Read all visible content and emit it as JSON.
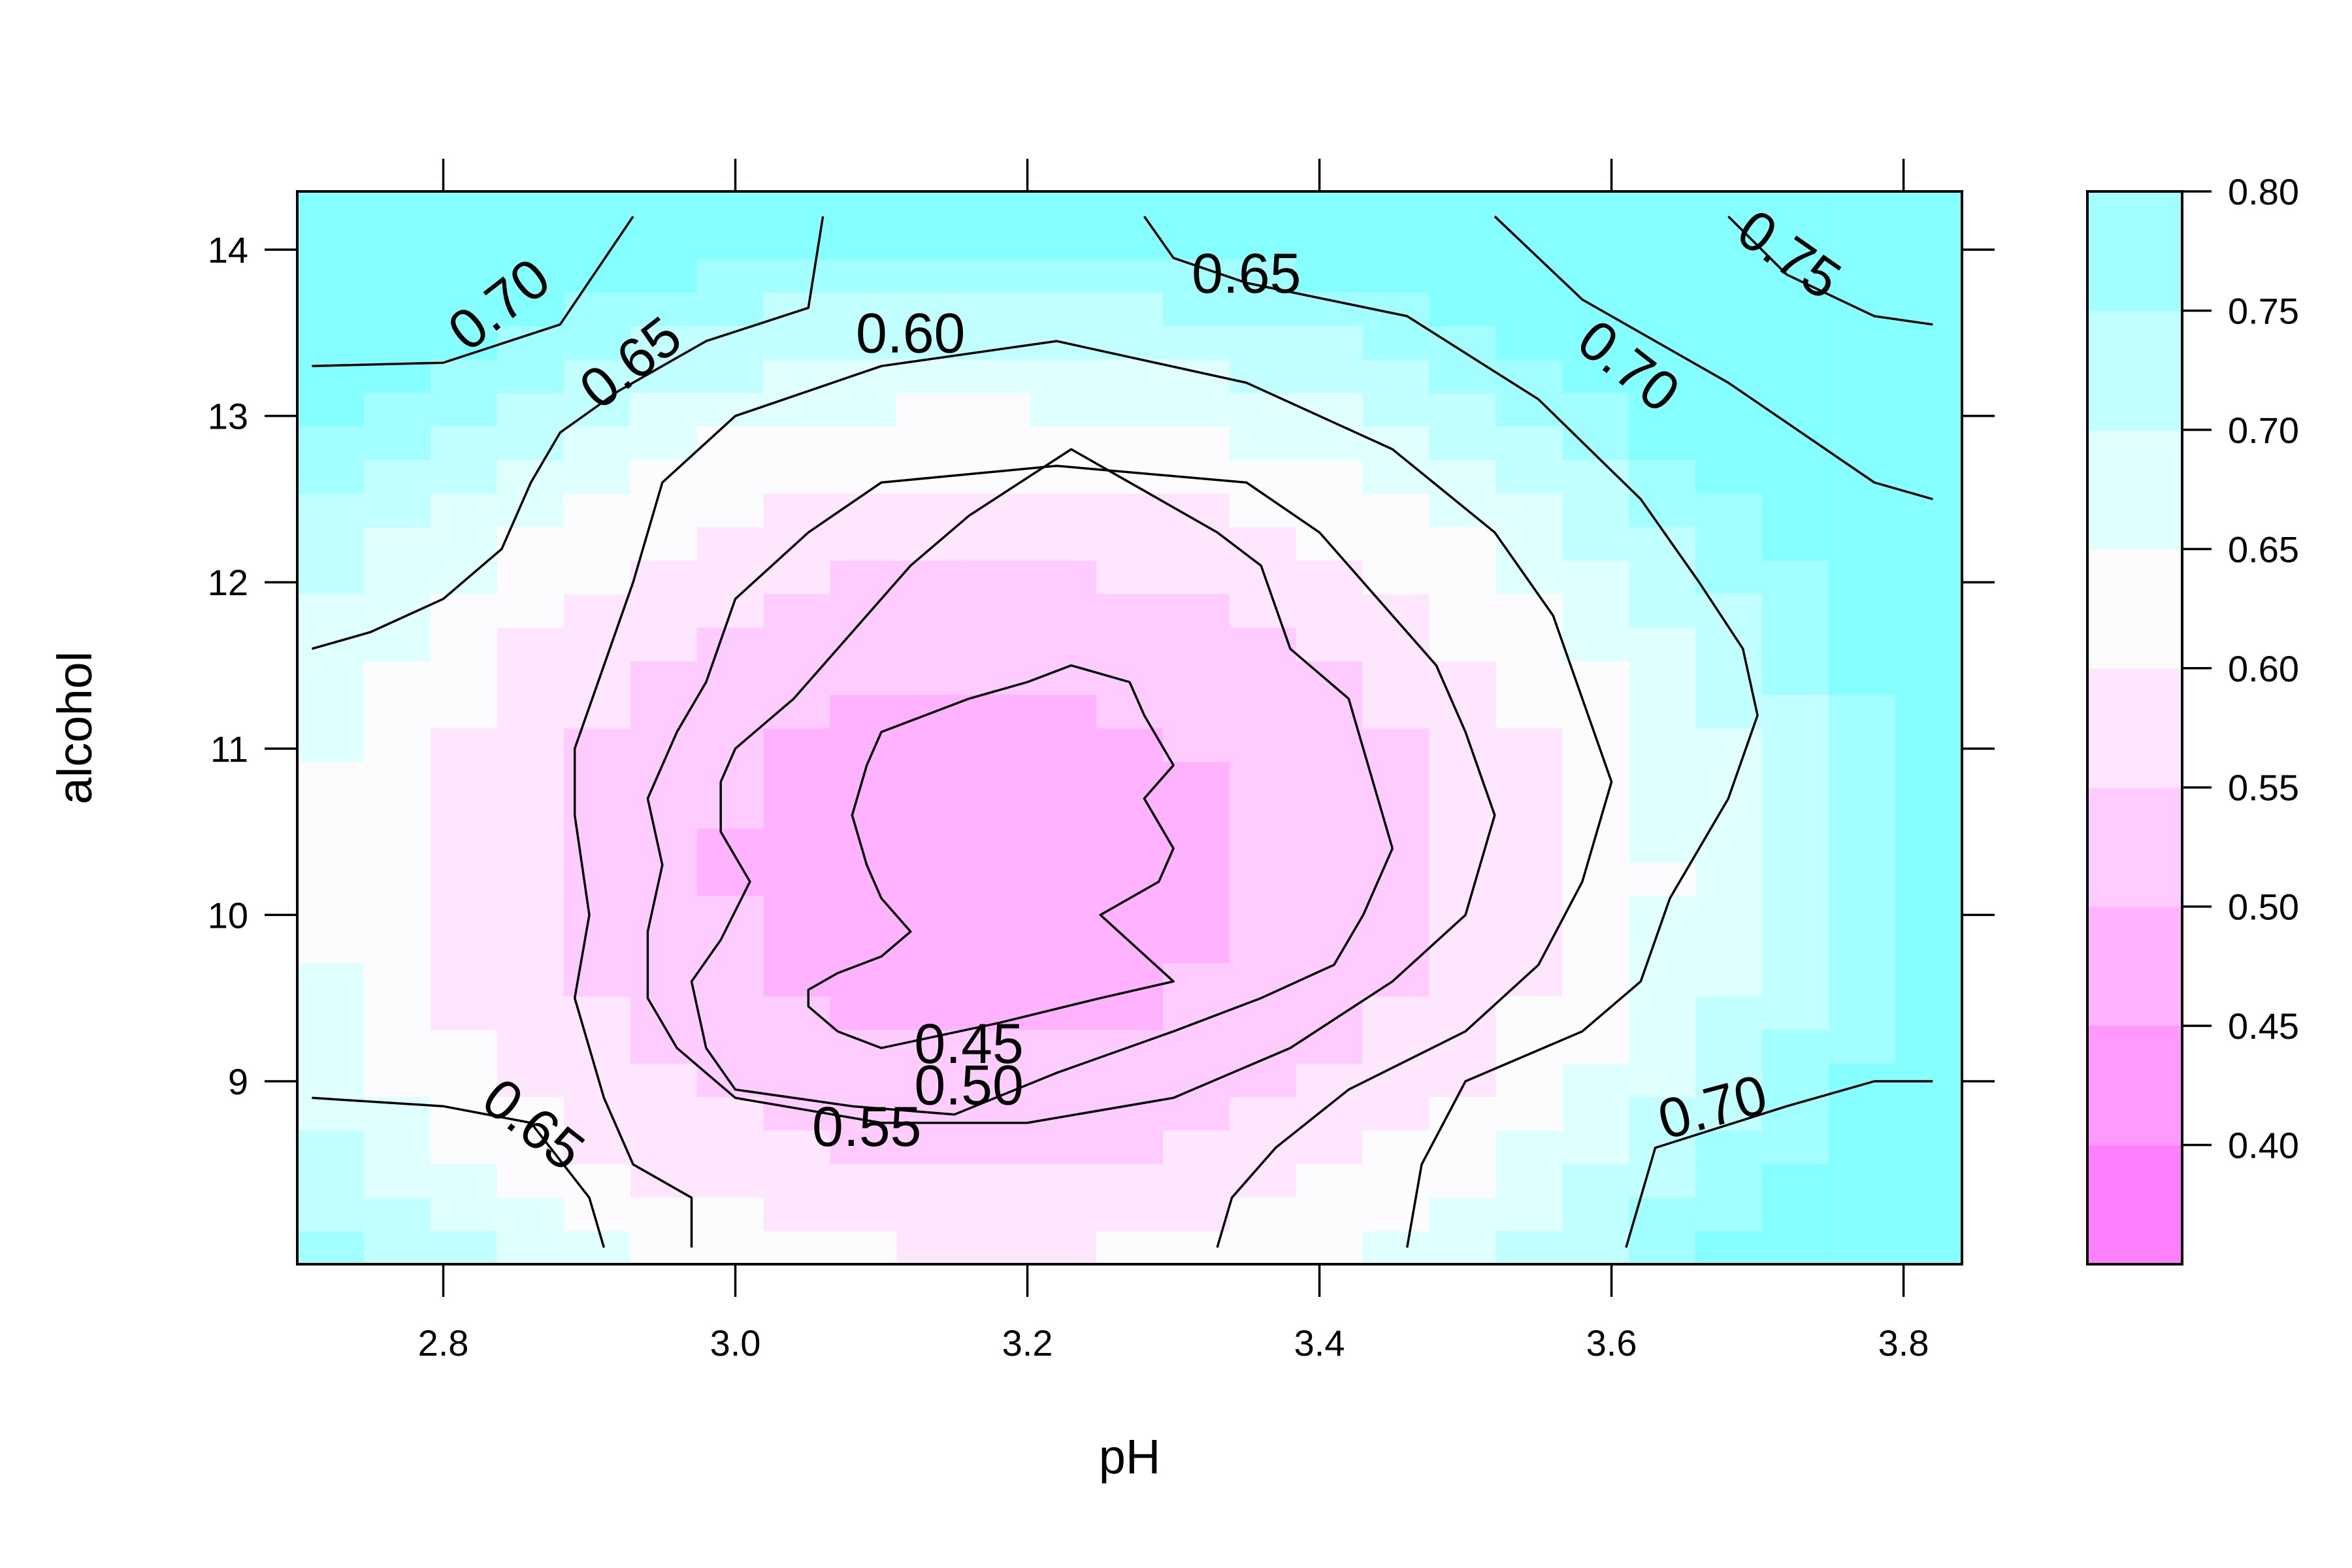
{
  "chart_data": {
    "type": "heatmap",
    "subtype": "levelplot-with-contours",
    "xlabel": "pH",
    "ylabel": "alcohol",
    "xlim": [
      2.7,
      3.84
    ],
    "ylim": [
      7.9,
      14.35
    ],
    "xticks": [
      2.8,
      3.0,
      3.2,
      3.4,
      3.6,
      3.8
    ],
    "xtick_labels": [
      "2.8",
      "3.0",
      "3.2",
      "3.4",
      "3.6",
      "3.8"
    ],
    "yticks": [
      9,
      10,
      11,
      12,
      13,
      14
    ],
    "ytick_labels": [
      "9",
      "10",
      "11",
      "12",
      "13",
      "14"
    ],
    "colorkey": {
      "range": [
        0.35,
        0.8
      ],
      "breaks": [
        0.35,
        0.4,
        0.45,
        0.5,
        0.55,
        0.6,
        0.65,
        0.7,
        0.75,
        0.8
      ],
      "colors": [
        "#ff80ff",
        "#ff99ff",
        "#ffb3ff",
        "#ffccff",
        "#ffe6ff",
        "#fcfcff",
        "#e0ffff",
        "#c2ffff",
        "#a3ffff",
        "#85ffff"
      ],
      "tick_values": [
        0.4,
        0.45,
        0.5,
        0.55,
        0.6,
        0.65,
        0.7,
        0.75,
        0.8
      ],
      "tick_labels": [
        "0.40",
        "0.45",
        "0.50",
        "0.55",
        "0.60",
        "0.65",
        "0.70",
        "0.75",
        "0.80"
      ]
    },
    "surface_model": {
      "description": "fitted response over pH x alcohol grid",
      "min_value": 0.44,
      "min_at": {
        "pH": 3.2,
        "alcohol": 10.4
      },
      "corner_values": {
        "top_left": 0.72,
        "top_right": 0.79,
        "bottom_left": 0.68,
        "bottom_right": 0.75
      }
    },
    "contours": [
      {
        "level": 0.45,
        "label": "0.45",
        "label_at": {
          "pH": 3.16,
          "alcohol": 9.2
        },
        "label_angle": 0
      },
      {
        "level": 0.5,
        "label": "0.50",
        "label_at": {
          "pH": 3.16,
          "alcohol": 8.95
        },
        "label_angle": 0
      },
      {
        "level": 0.55,
        "label": "0.55",
        "label_at": {
          "pH": 3.09,
          "alcohol": 8.7
        },
        "label_angle": 0
      },
      {
        "level": 0.6,
        "label": "0.60",
        "label_at": {
          "pH": 3.12,
          "alcohol": 13.47
        },
        "label_angle": 0
      },
      {
        "level": 0.65,
        "label": "0.65",
        "label_at": {
          "pH": 2.93,
          "alcohol": 13.3
        },
        "label_angle": -38
      },
      {
        "level": 0.65,
        "label": "0.65",
        "label_at": {
          "pH": 2.86,
          "alcohol": 8.72
        },
        "label_angle": 38
      },
      {
        "level": 0.65,
        "label": "0.65",
        "label_at": {
          "pH": 3.35,
          "alcohol": 13.83
        },
        "label_angle": 0
      },
      {
        "level": 0.7,
        "label": "0.70",
        "label_at": {
          "pH": 2.84,
          "alcohol": 13.65
        },
        "label_angle": -38
      },
      {
        "level": 0.7,
        "label": "0.70",
        "label_at": {
          "pH": 3.61,
          "alcohol": 13.28
        },
        "label_angle": 38
      },
      {
        "level": 0.7,
        "label": "0.70",
        "label_at": {
          "pH": 3.67,
          "alcohol": 8.82
        },
        "label_angle": -15
      },
      {
        "level": 0.75,
        "label": "0.75",
        "label_at": {
          "pH": 3.72,
          "alcohol": 13.95
        },
        "label_angle": 35
      }
    ],
    "contour_paths": [
      {
        "level": 0.45,
        "points": [
          [
            3.07,
            9.3
          ],
          [
            3.05,
            9.45
          ],
          [
            3.05,
            9.55
          ],
          [
            3.07,
            9.65
          ],
          [
            3.1,
            9.75
          ],
          [
            3.12,
            9.9
          ],
          [
            3.1,
            10.1
          ],
          [
            3.09,
            10.3
          ],
          [
            3.08,
            10.6
          ],
          [
            3.09,
            10.9
          ],
          [
            3.1,
            11.1
          ],
          [
            3.13,
            11.2
          ],
          [
            3.16,
            11.3
          ],
          [
            3.2,
            11.4
          ],
          [
            3.23,
            11.5
          ],
          [
            3.27,
            11.4
          ],
          [
            3.28,
            11.2
          ],
          [
            3.3,
            10.9
          ],
          [
            3.28,
            10.7
          ],
          [
            3.3,
            10.4
          ],
          [
            3.29,
            10.2
          ],
          [
            3.25,
            10.0
          ],
          [
            3.3,
            9.6
          ],
          [
            3.25,
            9.5
          ],
          [
            3.18,
            9.35
          ],
          [
            3.1,
            9.2
          ],
          [
            3.07,
            9.3
          ]
        ]
      },
      {
        "level": 0.5,
        "points": [
          [
            3.08,
            8.85
          ],
          [
            3.0,
            8.95
          ],
          [
            2.98,
            9.2
          ],
          [
            2.97,
            9.6
          ],
          [
            2.99,
            9.85
          ],
          [
            3.01,
            10.2
          ],
          [
            2.99,
            10.5
          ],
          [
            2.99,
            10.8
          ],
          [
            3.0,
            11.0
          ],
          [
            3.04,
            11.3
          ],
          [
            3.08,
            11.7
          ],
          [
            3.12,
            12.1
          ],
          [
            3.16,
            12.4
          ],
          [
            3.23,
            12.8
          ],
          [
            3.28,
            12.55
          ],
          [
            3.33,
            12.3
          ],
          [
            3.36,
            12.1
          ],
          [
            3.38,
            11.6
          ],
          [
            3.42,
            11.3
          ],
          [
            3.43,
            11.0
          ],
          [
            3.45,
            10.4
          ],
          [
            3.43,
            10.0
          ],
          [
            3.41,
            9.7
          ],
          [
            3.36,
            9.5
          ],
          [
            3.3,
            9.3
          ],
          [
            3.22,
            9.05
          ],
          [
            3.15,
            8.8
          ],
          [
            3.08,
            8.85
          ]
        ]
      },
      {
        "level": 0.55,
        "points": [
          [
            3.1,
            8.75
          ],
          [
            3.0,
            8.9
          ],
          [
            2.96,
            9.2
          ],
          [
            2.94,
            9.5
          ],
          [
            2.94,
            9.9
          ],
          [
            2.95,
            10.3
          ],
          [
            2.94,
            10.7
          ],
          [
            2.96,
            11.1
          ],
          [
            2.98,
            11.4
          ],
          [
            3.0,
            11.9
          ],
          [
            3.05,
            12.3
          ],
          [
            3.1,
            12.6
          ],
          [
            3.22,
            12.7
          ],
          [
            3.35,
            12.6
          ],
          [
            3.4,
            12.3
          ],
          [
            3.44,
            11.9
          ],
          [
            3.48,
            11.5
          ],
          [
            3.5,
            11.1
          ],
          [
            3.52,
            10.6
          ],
          [
            3.5,
            10.0
          ],
          [
            3.45,
            9.6
          ],
          [
            3.38,
            9.2
          ],
          [
            3.3,
            8.9
          ],
          [
            3.2,
            8.75
          ],
          [
            3.1,
            8.75
          ]
        ]
      },
      {
        "level": 0.6,
        "points": [
          [
            2.97,
            8.0
          ],
          [
            2.97,
            8.3
          ],
          [
            2.93,
            8.5
          ],
          [
            2.91,
            8.9
          ],
          [
            2.89,
            9.5
          ],
          [
            2.9,
            10.0
          ],
          [
            2.89,
            10.6
          ],
          [
            2.89,
            11.0
          ],
          [
            2.91,
            11.5
          ],
          [
            2.93,
            12.0
          ],
          [
            2.95,
            12.6
          ],
          [
            3.0,
            13.0
          ],
          [
            3.1,
            13.3
          ],
          [
            3.22,
            13.45
          ],
          [
            3.35,
            13.2
          ],
          [
            3.45,
            12.8
          ],
          [
            3.52,
            12.3
          ],
          [
            3.56,
            11.8
          ],
          [
            3.58,
            11.3
          ],
          [
            3.6,
            10.8
          ],
          [
            3.58,
            10.2
          ],
          [
            3.55,
            9.7
          ],
          [
            3.5,
            9.3
          ],
          [
            3.42,
            8.95
          ],
          [
            3.37,
            8.6
          ],
          [
            3.34,
            8.3
          ],
          [
            3.33,
            8.0
          ]
        ]
      },
      {
        "level": 0.65,
        "points": [
          [
            2.71,
            11.6
          ],
          [
            2.75,
            11.7
          ],
          [
            2.8,
            11.9
          ],
          [
            2.84,
            12.2
          ],
          [
            2.86,
            12.6
          ],
          [
            2.88,
            12.9
          ],
          [
            2.92,
            13.15
          ],
          [
            2.98,
            13.45
          ],
          [
            3.05,
            13.65
          ],
          [
            3.06,
            14.2
          ]
        ]
      },
      {
        "level": 0.65,
        "points": [
          [
            3.28,
            14.2
          ],
          [
            3.3,
            13.95
          ],
          [
            3.35,
            13.8
          ],
          [
            3.46,
            13.6
          ],
          [
            3.55,
            13.1
          ],
          [
            3.62,
            12.5
          ],
          [
            3.66,
            12.0
          ],
          [
            3.69,
            11.6
          ],
          [
            3.7,
            11.2
          ],
          [
            3.68,
            10.7
          ],
          [
            3.66,
            10.4
          ],
          [
            3.64,
            10.1
          ],
          [
            3.62,
            9.6
          ],
          [
            3.58,
            9.3
          ],
          [
            3.5,
            9.0
          ],
          [
            3.47,
            8.5
          ],
          [
            3.46,
            8.0
          ]
        ]
      },
      {
        "level": 0.65,
        "points": [
          [
            2.71,
            8.9
          ],
          [
            2.8,
            8.85
          ],
          [
            2.86,
            8.75
          ],
          [
            2.9,
            8.3
          ],
          [
            2.91,
            8.0
          ]
        ]
      },
      {
        "level": 0.7,
        "points": [
          [
            2.71,
            13.3
          ],
          [
            2.8,
            13.32
          ],
          [
            2.88,
            13.55
          ],
          [
            2.93,
            14.2
          ]
        ]
      },
      {
        "level": 0.7,
        "points": [
          [
            3.52,
            14.2
          ],
          [
            3.58,
            13.7
          ],
          [
            3.68,
            13.2
          ],
          [
            3.78,
            12.6
          ],
          [
            3.82,
            12.5
          ]
        ]
      },
      {
        "level": 0.7,
        "points": [
          [
            3.61,
            8.0
          ],
          [
            3.63,
            8.6
          ],
          [
            3.72,
            8.85
          ],
          [
            3.78,
            9.0
          ],
          [
            3.82,
            9.0
          ]
        ]
      },
      {
        "level": 0.75,
        "points": [
          [
            3.68,
            14.2
          ],
          [
            3.72,
            13.85
          ],
          [
            3.78,
            13.6
          ],
          [
            3.82,
            13.55
          ]
        ]
      }
    ]
  }
}
